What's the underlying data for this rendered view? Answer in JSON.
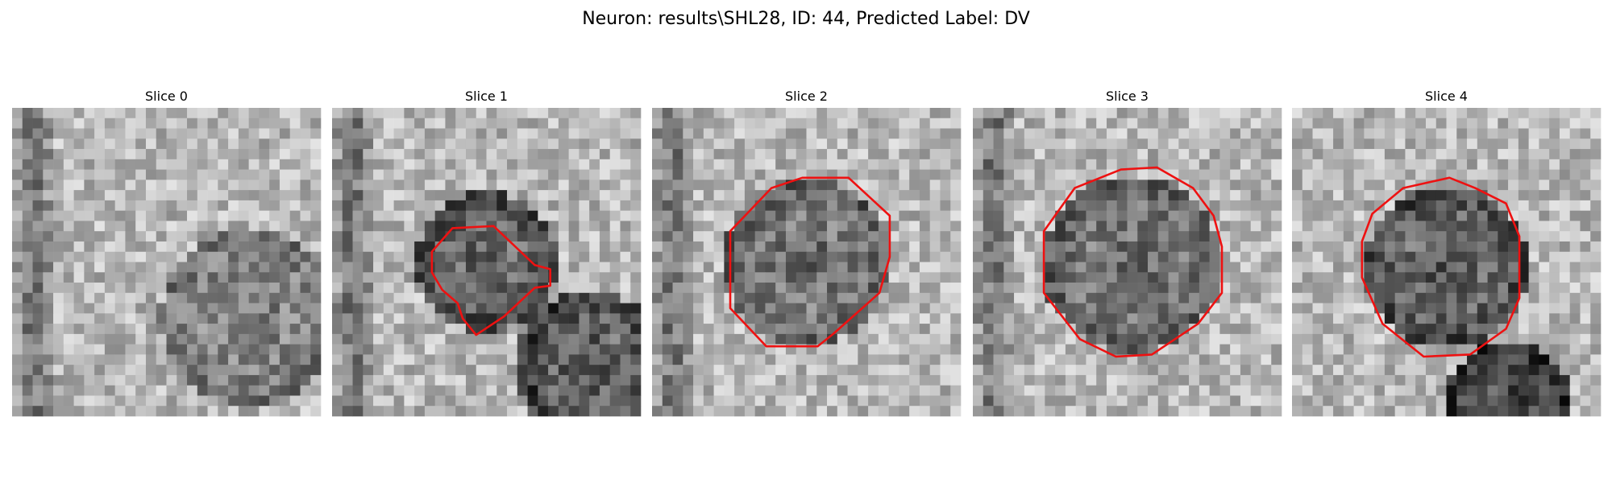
{
  "title": "Neuron: results\\SHL28, ID: 44, Predicted Label: DV",
  "panels": [
    {
      "title": "Slice 0"
    },
    {
      "title": "Slice 1"
    },
    {
      "title": "Slice 2"
    },
    {
      "title": "Slice 3"
    },
    {
      "title": "Slice 4"
    }
  ]
}
